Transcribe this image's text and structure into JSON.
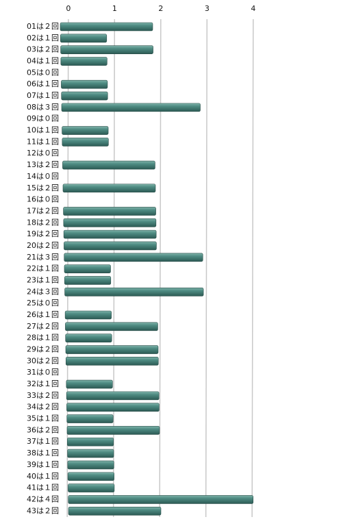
{
  "chart_data": {
    "type": "bar",
    "orientation": "horizontal",
    "categories": [
      "01は２回",
      "02は１回",
      "03は２回",
      "04は１回",
      "05は０回",
      "06は１回",
      "07は１回",
      "08は３回",
      "09は０回",
      "10は１回",
      "11は１回",
      "12は０回",
      "13は２回",
      "14は０回",
      "15は２回",
      "16は０回",
      "17は２回",
      "18は２回",
      "19は２回",
      "20は２回",
      "21は３回",
      "22は１回",
      "23は１回",
      "24は３回",
      "25は０回",
      "26は１回",
      "27は２回",
      "28は１回",
      "29は２回",
      "30は２回",
      "31は０回",
      "32は１回",
      "33は２回",
      "34は２回",
      "35は１回",
      "36は２回",
      "37は１回",
      "38は１回",
      "39は１回",
      "40は１回",
      "41は１回",
      "42は４回",
      "43は２回"
    ],
    "values": [
      2,
      1,
      2,
      1,
      0,
      1,
      1,
      3,
      0,
      1,
      1,
      0,
      2,
      0,
      2,
      0,
      2,
      2,
      2,
      2,
      3,
      1,
      1,
      3,
      0,
      1,
      2,
      1,
      2,
      2,
      0,
      1,
      2,
      2,
      1,
      2,
      1,
      1,
      1,
      1,
      1,
      4,
      2
    ],
    "color": "#4f8c83",
    "xlim": [
      0,
      4
    ],
    "xticks": [
      0,
      1,
      2,
      3,
      4
    ],
    "grid": true
  }
}
